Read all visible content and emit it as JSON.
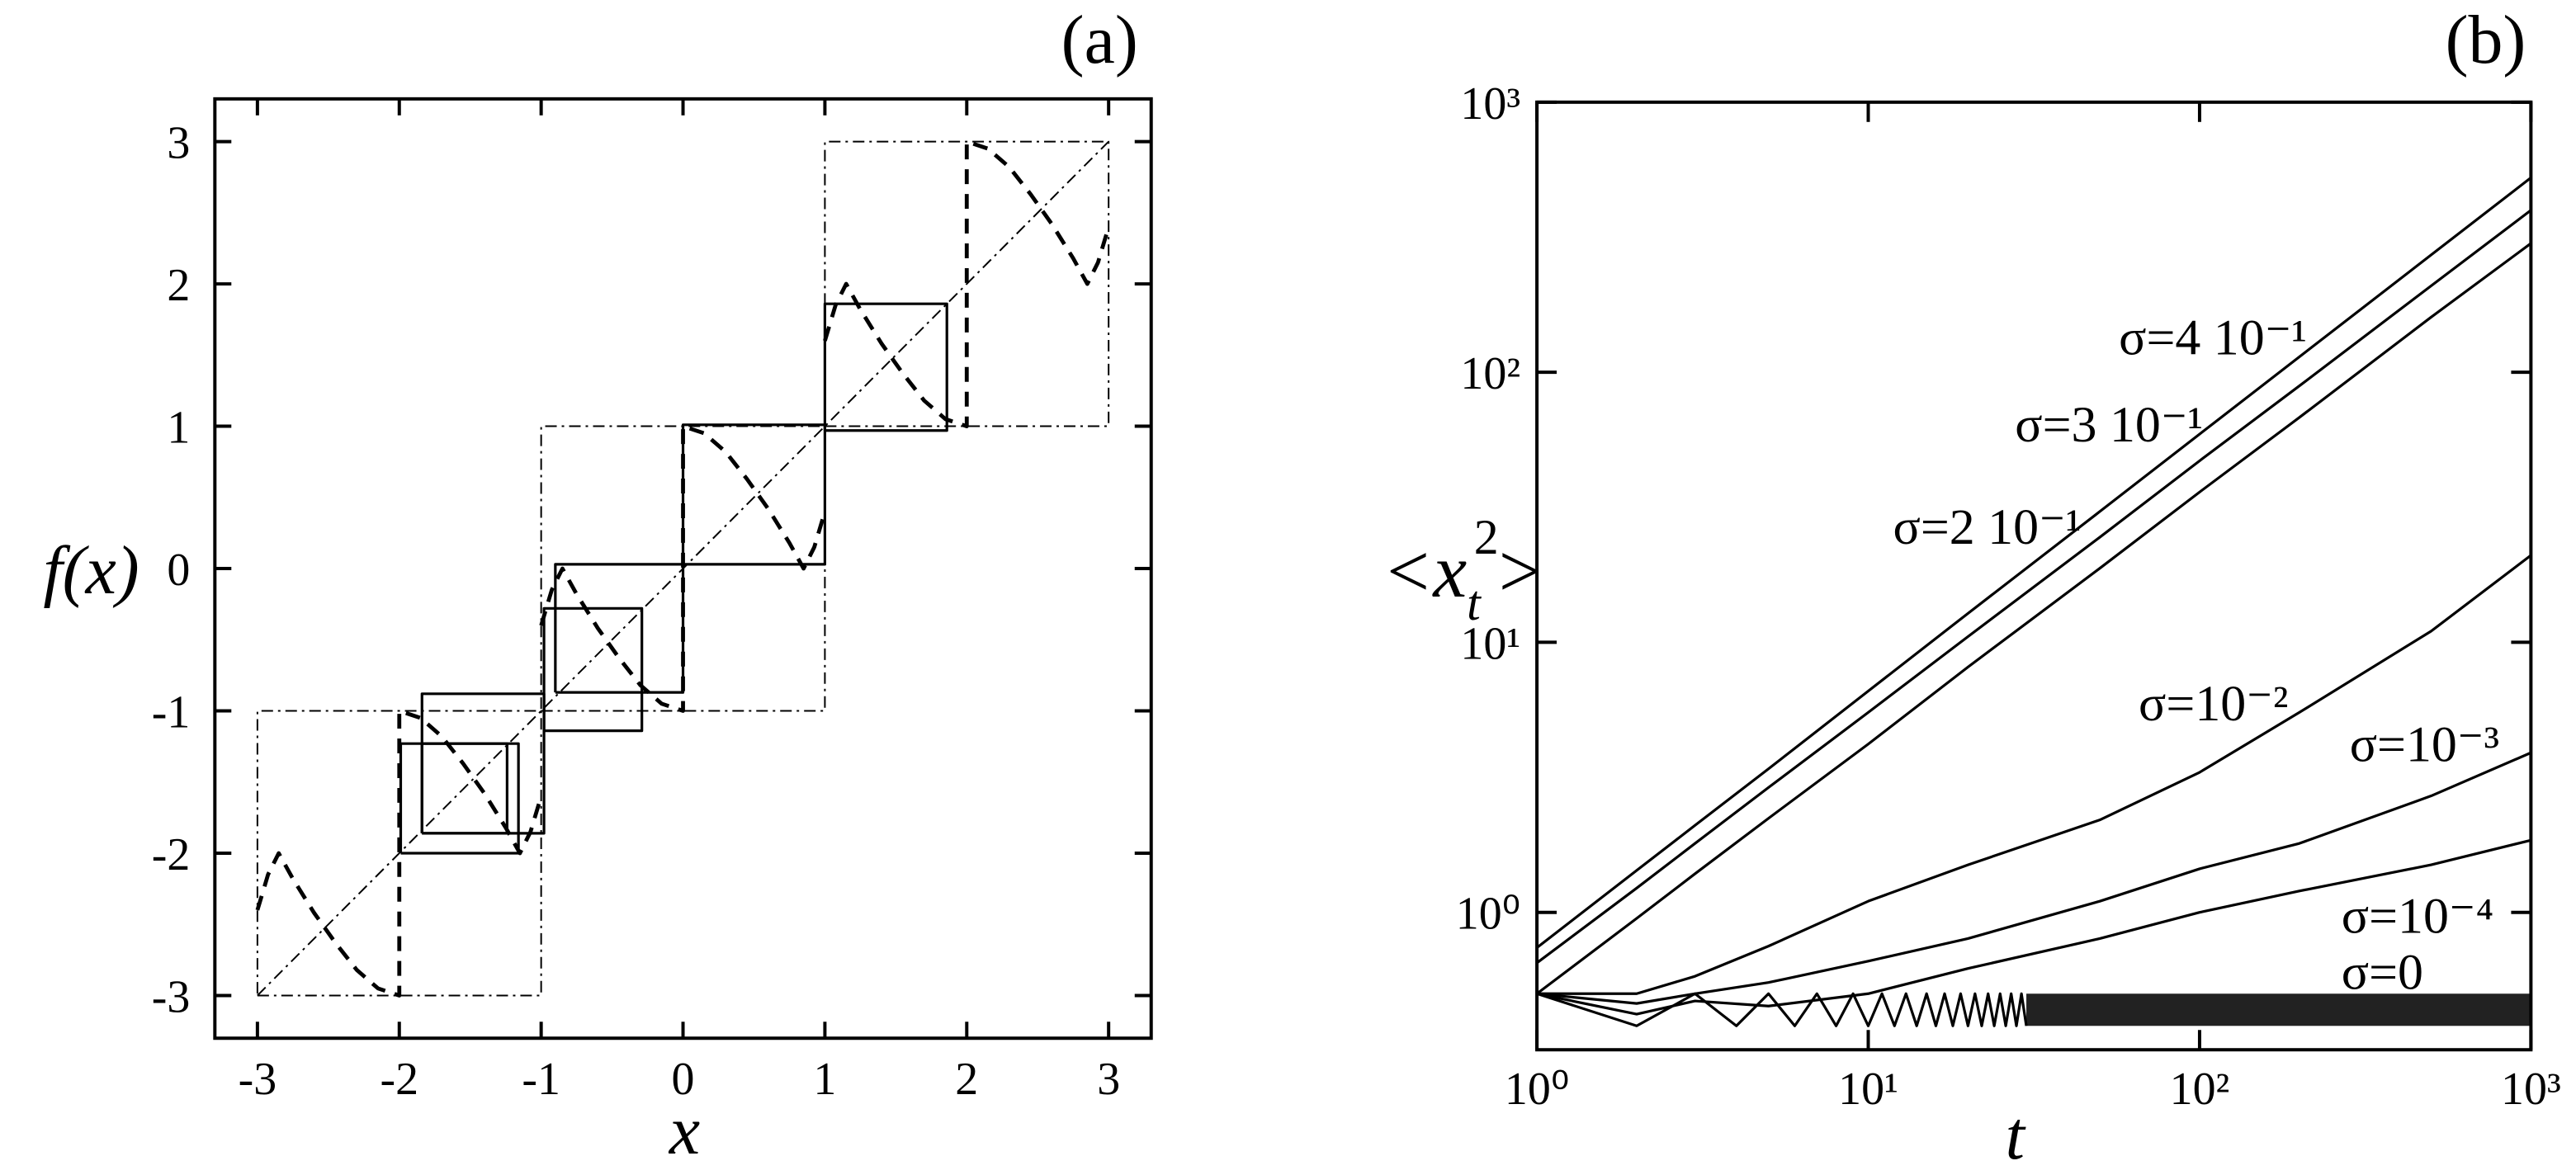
{
  "chart_data": [
    {
      "type": "line",
      "panel_label": "(a)",
      "xlabel": "x",
      "ylabel": "f(x)",
      "xlim": [
        -3.3,
        3.3
      ],
      "ylim": [
        -3.3,
        3.3
      ],
      "xticks": [
        -3,
        -2,
        -1,
        0,
        1,
        2,
        3
      ],
      "yticks": [
        -3,
        -2,
        -1,
        0,
        1,
        2,
        3
      ],
      "series": [
        {
          "style": "dashed",
          "color": "#000000",
          "x": [
            -3,
            -2.925,
            -2.85,
            -2.75,
            -2.6,
            -2.45,
            -2.3,
            -2.15,
            -2,
            -2,
            -1.85,
            -1.7,
            -1.55,
            -1.4,
            -1.25,
            -1.15,
            -1.075,
            -1
          ],
          "values": [
            -2.4,
            -2.15,
            -2,
            -2.18,
            -2.42,
            -2.63,
            -2.82,
            -2.95,
            -3,
            -1,
            -1.05,
            -1.18,
            -1.37,
            -1.58,
            -1.82,
            -2,
            -1.85,
            -1.6
          ]
        },
        {
          "style": "dashed",
          "color": "#000000",
          "x": [
            -1,
            -0.925,
            -0.85,
            -0.75,
            -0.6,
            -0.45,
            -0.3,
            -0.15,
            0,
            0,
            0.15,
            0.3,
            0.45,
            0.6,
            0.75,
            0.85,
            0.925,
            1
          ],
          "values": [
            -0.4,
            -0.15,
            0,
            -0.18,
            -0.42,
            -0.63,
            -0.82,
            -0.95,
            -1,
            1,
            0.95,
            0.82,
            0.63,
            0.42,
            0.18,
            0,
            0.15,
            0.4
          ]
        },
        {
          "style": "dashed",
          "color": "#000000",
          "x": [
            1,
            1.075,
            1.15,
            1.25,
            1.4,
            1.55,
            1.7,
            1.85,
            2,
            2,
            2.15,
            2.3,
            2.45,
            2.6,
            2.75,
            2.85,
            2.925,
            3
          ],
          "values": [
            1.6,
            1.85,
            2,
            1.82,
            1.58,
            1.37,
            1.18,
            1.05,
            1,
            3,
            2.95,
            2.82,
            2.63,
            2.42,
            2.18,
            2,
            2.15,
            2.4
          ]
        },
        {
          "style": "dashdot",
          "color": "#000000",
          "x": [
            -3,
            3
          ],
          "values": [
            -3,
            3
          ]
        },
        {
          "style": "dashdot",
          "color": "#000000",
          "x": [
            -3,
            -1,
            -1,
            -3,
            -3
          ],
          "values": [
            -3,
            -3,
            -1,
            -1,
            -3
          ]
        },
        {
          "style": "dashdot",
          "color": "#000000",
          "x": [
            -1,
            1,
            1,
            -1,
            -1
          ],
          "values": [
            -1,
            -1,
            1,
            1,
            -1
          ]
        },
        {
          "style": "dashdot",
          "color": "#000000",
          "x": [
            1,
            3,
            3,
            1,
            1
          ],
          "values": [
            1,
            1,
            3,
            3,
            1
          ]
        },
        {
          "style": "solid",
          "color": "#000000",
          "x": [
            -1.99,
            -1.16,
            -1.16,
            -1.99,
            -1.99
          ],
          "values": [
            -2,
            -2,
            -1.23,
            -1.23,
            -2
          ]
        },
        {
          "style": "solid",
          "color": "#000000",
          "x": [
            -1.84,
            -1.24,
            -1.24,
            -1.84,
            -1.84
          ],
          "values": [
            -1.86,
            -1.86,
            -1.23,
            -1.23,
            -1.86
          ]
        },
        {
          "style": "solid",
          "color": "#000000",
          "x": [
            -1.84,
            -0.98,
            -0.98,
            -1.84,
            -1.84
          ],
          "values": [
            -1.86,
            -1.86,
            -0.88,
            -0.88,
            -1.86
          ]
        },
        {
          "style": "solid",
          "color": "#000000",
          "x": [
            -0.98,
            -0.29,
            -0.29,
            -0.98,
            -0.98
          ],
          "values": [
            -1.14,
            -1.14,
            -0.28,
            -0.28,
            -1.14
          ]
        },
        {
          "style": "solid",
          "color": "#000000",
          "x": [
            -0.9,
            0,
            0,
            -0.9,
            -0.9
          ],
          "values": [
            -0.87,
            -0.87,
            0.03,
            0.03,
            -0.87
          ]
        },
        {
          "style": "solid",
          "color": "#000000",
          "x": [
            0,
            1,
            1,
            0,
            0
          ],
          "values": [
            0.03,
            0.03,
            1.01,
            1.01,
            0.03
          ]
        },
        {
          "style": "solid",
          "color": "#000000",
          "x": [
            1,
            1.86,
            1.86,
            1,
            1
          ],
          "values": [
            0.97,
            0.97,
            1.86,
            1.86,
            0.97
          ]
        }
      ]
    },
    {
      "type": "line",
      "panel_label": "(b)",
      "xlabel": "t",
      "ylabel": {
        "open": "<x",
        "sub": "t",
        "sup": "2",
        "close": ">"
      },
      "log_x": true,
      "log_y": true,
      "xlim": [
        1,
        1000
      ],
      "ylim": [
        0.31,
        1000
      ],
      "xticks": [
        {
          "value": 1,
          "label": "10⁰"
        },
        {
          "value": 10,
          "label": "10¹"
        },
        {
          "value": 100,
          "label": "10²"
        },
        {
          "value": 1000,
          "label": "10³"
        }
      ],
      "yticks": [
        {
          "value": 1,
          "label": "10⁰"
        },
        {
          "value": 10,
          "label": "10¹"
        },
        {
          "value": 100,
          "label": "10²"
        },
        {
          "value": 1000,
          "label": "10³"
        }
      ],
      "series": [
        {
          "name": "σ=4 10⁻¹",
          "style": "solid",
          "color": "#000000",
          "x": [
            1,
            2,
            3,
            5,
            10,
            20,
            50,
            100,
            200,
            500,
            1000
          ],
          "values": [
            0.74,
            1.43,
            2.1,
            3.4,
            6.6,
            12.8,
            30.5,
            59,
            114,
            272,
            525
          ]
        },
        {
          "name": "σ=3 10⁻¹",
          "style": "solid",
          "color": "#000000",
          "x": [
            1,
            2,
            3,
            5,
            10,
            20,
            50,
            100,
            200,
            500,
            1000
          ],
          "values": [
            0.65,
            1.23,
            1.8,
            2.9,
            5.5,
            10.5,
            24.5,
            47,
            89,
            209,
            398
          ]
        },
        {
          "name": "σ=2 10⁻¹",
          "style": "solid",
          "color": "#000000",
          "x": [
            1,
            2,
            3,
            5,
            10,
            20,
            50,
            100,
            200,
            500,
            1000
          ],
          "values": [
            0.5,
            0.95,
            1.39,
            2.23,
            4.2,
            8.1,
            18.8,
            36,
            68,
            160,
            300
          ]
        },
        {
          "name": "σ=10⁻²",
          "style": "solid",
          "color": "#000000",
          "x": [
            1,
            2,
            3,
            5,
            10,
            20,
            50,
            100,
            200,
            500,
            1000
          ],
          "values": [
            0.5,
            0.5,
            0.58,
            0.75,
            1.1,
            1.5,
            2.2,
            3.3,
            5.5,
            11,
            21
          ]
        },
        {
          "name": "σ=10⁻³",
          "style": "solid",
          "color": "#000000",
          "x": [
            1,
            2,
            3,
            5,
            10,
            20,
            50,
            100,
            200,
            500,
            1000
          ],
          "values": [
            0.5,
            0.46,
            0.5,
            0.55,
            0.66,
            0.8,
            1.1,
            1.45,
            1.8,
            2.7,
            3.9
          ]
        },
        {
          "name": "σ=10⁻⁴",
          "style": "solid",
          "color": "#000000",
          "x": [
            1,
            2,
            3,
            5,
            10,
            20,
            50,
            100,
            200,
            500,
            1000
          ],
          "values": [
            0.5,
            0.42,
            0.47,
            0.45,
            0.5,
            0.62,
            0.8,
            1,
            1.2,
            1.5,
            1.85
          ]
        },
        {
          "name": "σ=0",
          "style": "solid",
          "color": "#000000",
          "x": [
            1,
            2,
            3,
            4,
            5,
            6,
            7,
            8,
            9,
            10,
            11,
            12,
            13,
            14,
            15,
            16,
            17,
            18,
            19,
            20,
            21,
            22,
            23,
            24,
            25,
            26,
            27,
            28,
            29,
            30
          ],
          "values": [
            0.5,
            0.38,
            0.5,
            0.38,
            0.5,
            0.38,
            0.5,
            0.38,
            0.5,
            0.38,
            0.5,
            0.38,
            0.5,
            0.38,
            0.5,
            0.38,
            0.5,
            0.38,
            0.5,
            0.38,
            0.5,
            0.38,
            0.5,
            0.38,
            0.5,
            0.38,
            0.5,
            0.38,
            0.5,
            0.38
          ]
        }
      ],
      "band": {
        "color": "#222222",
        "x": [
          30,
          1000
        ],
        "values": [
          0.38,
          0.5
        ]
      }
    }
  ]
}
